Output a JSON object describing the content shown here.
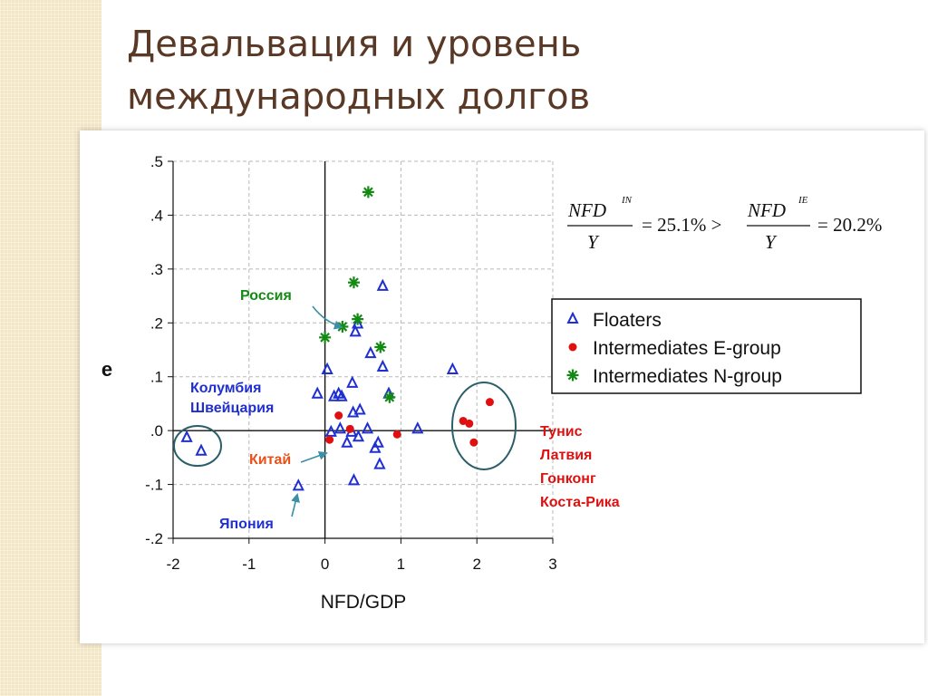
{
  "slide": {
    "title_line1": "Девальвация и уровень",
    "title_line2": "международных долгов"
  },
  "formula": {
    "num1": "NFD",
    "sup1": "IN",
    "den1": "Y",
    "mid": "= 25.1% >",
    "num2": "NFD",
    "sup2": "IE",
    "den2": "Y",
    "end": "= 20.2%"
  },
  "annotations": {
    "russia": "Россия",
    "colombia": "Колумбия",
    "switzerland": "Швейцария",
    "china": "Китай",
    "japan": "Япония",
    "tunisia": "Тунис",
    "latvia": "Латвия",
    "hongkong": "Гонконг",
    "costarica": "Коста-Рика"
  },
  "colors": {
    "floaters": "#1f2fd0",
    "e_group": "#e01010",
    "n_group": "#138a13",
    "russia_label": "#138a13",
    "china_label": "#e8501a",
    "blue_label": "#1f2fd0",
    "red_label": "#e01010",
    "ellipse": "#2a5f6a",
    "arrow": "#3c8fa6"
  },
  "chart_data": {
    "type": "scatter",
    "title": "",
    "xlabel": "NFD/GDP",
    "ylabel": "e",
    "xlim": [
      -2,
      3
    ],
    "ylim": [
      -0.2,
      0.5
    ],
    "xticks": [
      -2,
      -1,
      0,
      1,
      2,
      3
    ],
    "xtick_labels": [
      "-2",
      "-1",
      "0",
      "1",
      "2",
      "3"
    ],
    "yticks": [
      0.5,
      0.4,
      0.3,
      0.2,
      0.1,
      0.0,
      -0.1,
      -0.2
    ],
    "ytick_labels": [
      ".5",
      ".4",
      ".3",
      ".2",
      ".1",
      ".0",
      "-.1",
      "-.2"
    ],
    "grid": true,
    "legend_position": "right",
    "series": [
      {
        "name": "Floaters",
        "marker": "triangle",
        "points": [
          [
            -1.82,
            -0.013
          ],
          [
            -1.63,
            -0.038
          ],
          [
            -0.35,
            -0.103
          ],
          [
            0.03,
            0.113
          ],
          [
            -0.1,
            0.068
          ],
          [
            0.12,
            0.063
          ],
          [
            0.18,
            0.068
          ],
          [
            0.22,
            0.063
          ],
          [
            0.36,
            0.088
          ],
          [
            0.37,
            0.033
          ],
          [
            0.4,
            0.183
          ],
          [
            0.43,
            0.198
          ],
          [
            0.46,
            0.038
          ],
          [
            0.44,
            -0.012
          ],
          [
            0.56,
            0.003
          ],
          [
            0.6,
            0.143
          ],
          [
            0.66,
            -0.033
          ],
          [
            0.7,
            -0.023
          ],
          [
            0.38,
            -0.093
          ],
          [
            0.72,
            -0.063
          ],
          [
            0.76,
            0.268
          ],
          [
            0.76,
            0.118
          ],
          [
            0.84,
            0.068
          ],
          [
            1.22,
            0.003
          ],
          [
            1.68,
            0.113
          ],
          [
            0.29,
            -0.023
          ],
          [
            0.35,
            -0.003
          ],
          [
            0.2,
            0.003
          ],
          [
            0.08,
            -0.003
          ]
        ]
      },
      {
        "name": "Intermediates E-group",
        "marker": "circle",
        "points": [
          [
            0.18,
            0.028
          ],
          [
            0.06,
            -0.017
          ],
          [
            0.33,
            0.003
          ],
          [
            0.95,
            -0.007
          ],
          [
            1.82,
            0.018
          ],
          [
            1.9,
            0.013
          ],
          [
            1.96,
            -0.022
          ],
          [
            2.17,
            0.053
          ]
        ]
      },
      {
        "name": "Intermediates N-group",
        "marker": "star",
        "points": [
          [
            0.57,
            0.443
          ],
          [
            0.38,
            0.275
          ],
          [
            0.43,
            0.207
          ],
          [
            0.23,
            0.193
          ],
          [
            0.0,
            0.173
          ],
          [
            0.73,
            0.155
          ],
          [
            0.85,
            0.062
          ]
        ]
      }
    ]
  }
}
